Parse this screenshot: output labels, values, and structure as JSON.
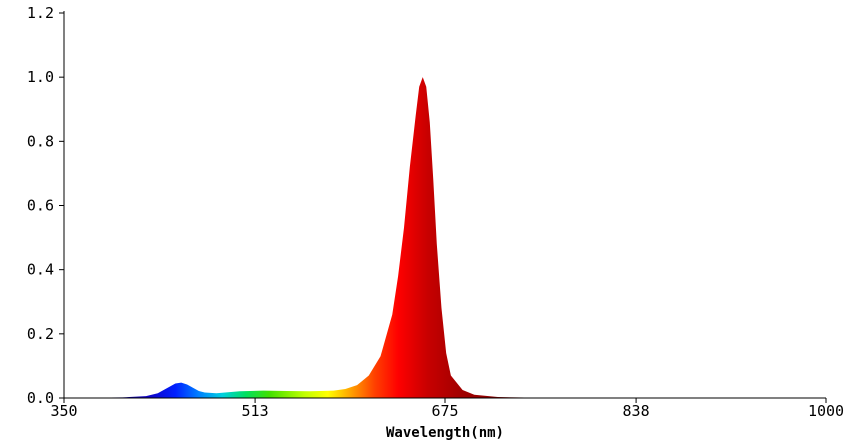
{
  "chart_data": {
    "type": "area",
    "title": "",
    "xlabel": "Wavelength(nm)",
    "ylabel": "",
    "xlim": [
      350,
      1000
    ],
    "ylim": [
      0,
      1.2
    ],
    "x_ticks": [
      "350",
      "513",
      "675",
      "838",
      "1000"
    ],
    "y_ticks": [
      "0.0",
      "0.2",
      "0.4",
      "0.6",
      "0.8",
      "1.0",
      "1.2"
    ],
    "grid": false,
    "fill": "visible-spectrum gradient (blue at ~450 nm through red at ~650+ nm)",
    "series": [
      {
        "x": [
          350,
          400,
          420,
          430,
          440,
          445,
          450,
          455,
          460,
          465,
          470,
          480,
          490,
          500,
          520,
          540,
          560,
          580,
          590,
          600,
          610,
          620,
          630,
          635,
          640,
          645,
          650,
          653,
          656,
          659,
          662,
          665,
          668,
          672,
          676,
          680,
          690,
          700,
          720,
          750,
          800,
          850,
          900,
          1000
        ],
        "y": [
          0.0,
          0.002,
          0.006,
          0.015,
          0.035,
          0.045,
          0.048,
          0.042,
          0.032,
          0.022,
          0.017,
          0.015,
          0.018,
          0.021,
          0.023,
          0.022,
          0.021,
          0.023,
          0.028,
          0.04,
          0.07,
          0.13,
          0.26,
          0.38,
          0.53,
          0.72,
          0.88,
          0.97,
          1.0,
          0.97,
          0.86,
          0.68,
          0.48,
          0.28,
          0.14,
          0.07,
          0.025,
          0.01,
          0.003,
          0.001,
          0.0,
          0.0,
          0.0,
          0.0
        ]
      }
    ]
  }
}
